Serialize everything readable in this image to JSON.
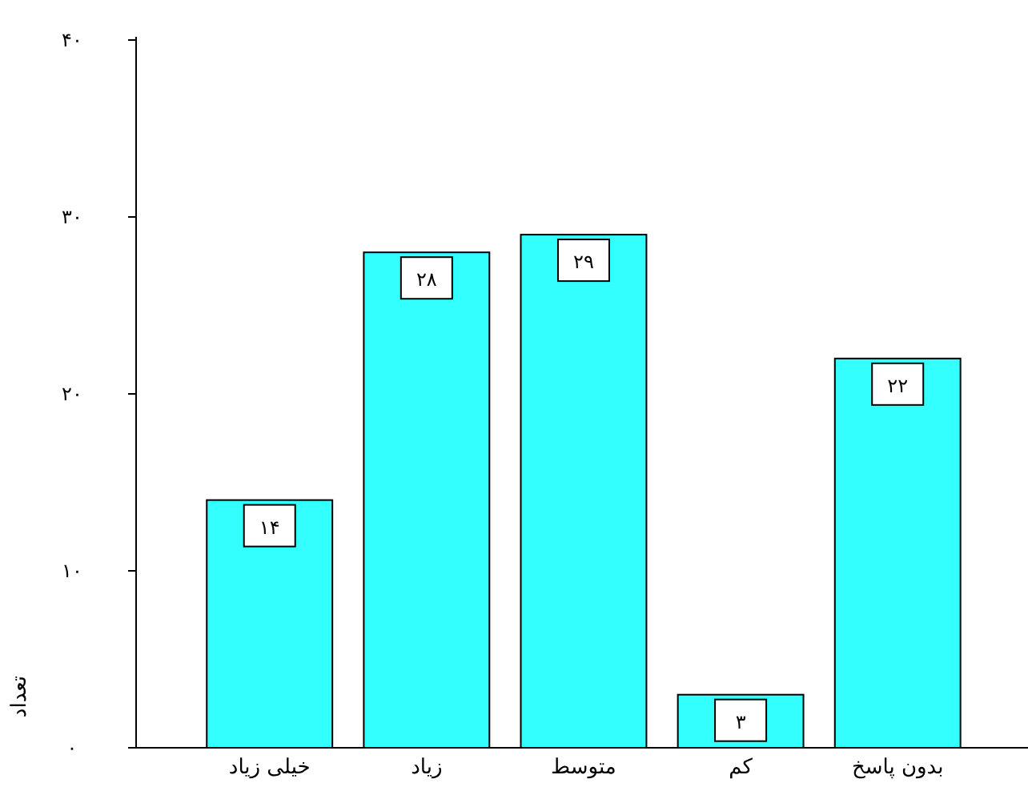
{
  "chart_data": {
    "type": "bar",
    "ylabel": "تعداد",
    "categories": [
      "خیلی زیاد",
      "زیاد",
      "متوسط",
      "کم",
      "بدون پاسخ"
    ],
    "values": [
      14,
      28,
      29,
      3,
      22
    ],
    "value_labels": [
      "۱۴",
      "۲۸",
      "۲۹",
      "۳",
      "۲۲"
    ],
    "color": "#33ffff",
    "ylim": [
      0,
      40
    ],
    "yticks": [
      {
        "value": 0,
        "label": "۰"
      },
      {
        "value": 10,
        "label": "۱۰"
      },
      {
        "value": 20,
        "label": "۲۰"
      },
      {
        "value": 30,
        "label": "۳۰"
      },
      {
        "value": 40,
        "label": "۴۰"
      }
    ]
  }
}
